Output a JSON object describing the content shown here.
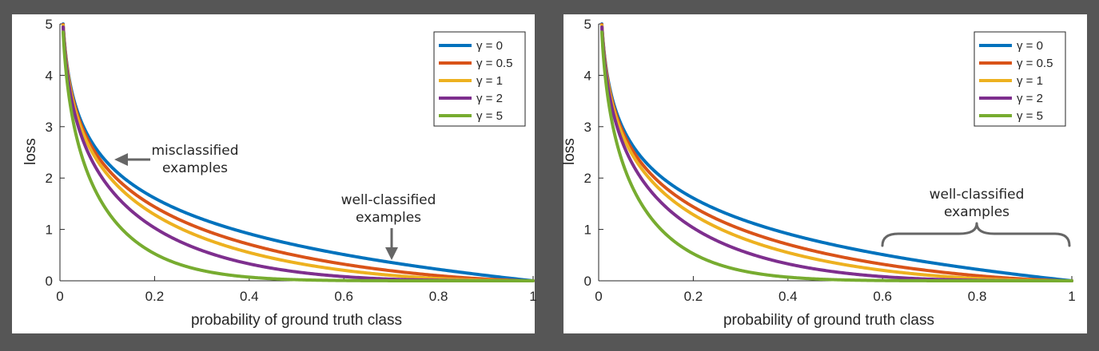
{
  "chart_data": [
    {
      "type": "line",
      "title": "",
      "xlabel": "probability of ground truth class",
      "ylabel": "loss",
      "xlim": [
        0,
        1
      ],
      "ylim": [
        0,
        5
      ],
      "x_ticks": [
        "0",
        "0.2",
        "0.4",
        "0.6",
        "0.8",
        "1"
      ],
      "y_ticks": [
        "0",
        "1",
        "2",
        "3",
        "4",
        "5"
      ],
      "x": [
        0.0067,
        0.01,
        0.02,
        0.05,
        0.1,
        0.2,
        0.3,
        0.4,
        0.5,
        0.6,
        0.7,
        0.8,
        0.9,
        1.0
      ],
      "series": [
        {
          "name": "γ = 0",
          "gamma": 0,
          "color": "#0072BD",
          "values": [
            5.0,
            4.61,
            3.91,
            3.0,
            2.3,
            1.61,
            1.2,
            0.92,
            0.69,
            0.51,
            0.36,
            0.22,
            0.11,
            0.0
          ]
        },
        {
          "name": "γ = 0.5",
          "gamma": 0.5,
          "color": "#D95319",
          "values": [
            4.98,
            4.58,
            3.87,
            2.92,
            2.18,
            1.44,
            1.01,
            0.71,
            0.49,
            0.32,
            0.2,
            0.1,
            0.03,
            0.0
          ]
        },
        {
          "name": "γ = 1",
          "gamma": 1,
          "color": "#EDB120",
          "values": [
            4.97,
            4.56,
            3.83,
            2.85,
            2.07,
            1.29,
            0.84,
            0.55,
            0.35,
            0.2,
            0.11,
            0.04,
            0.01,
            0.0
          ]
        },
        {
          "name": "γ = 2",
          "gamma": 2,
          "color": "#7E2F8E",
          "values": [
            4.93,
            4.52,
            3.76,
            2.71,
            1.87,
            1.03,
            0.59,
            0.33,
            0.17,
            0.08,
            0.03,
            0.01,
            0.001,
            0.0
          ]
        },
        {
          "name": "γ = 5",
          "gamma": 5,
          "color": "#77AC30",
          "values": [
            4.83,
            4.38,
            3.54,
            2.32,
            1.36,
            0.53,
            0.2,
            0.07,
            0.02,
            0.005,
            0.001,
            0.0,
            0.0,
            0.0
          ]
        }
      ],
      "legend": {
        "position": "top-right"
      },
      "annotations": [
        {
          "kind": "arrow",
          "lines": [
            "misclassified",
            "examples"
          ],
          "target": [
            0.1,
            2.3
          ]
        },
        {
          "kind": "arrow",
          "lines": [
            "well-classified",
            "examples"
          ],
          "target": [
            0.7,
            0.36
          ]
        }
      ]
    },
    {
      "type": "line",
      "title": "",
      "xlabel": "probability of ground truth class",
      "ylabel": "loss",
      "xlim": [
        0,
        1
      ],
      "ylim": [
        0,
        5
      ],
      "x_ticks": [
        "0",
        "0.2",
        "0.4",
        "0.6",
        "0.8",
        "1"
      ],
      "y_ticks": [
        "0",
        "1",
        "2",
        "3",
        "4",
        "5"
      ],
      "x": [
        0.0067,
        0.01,
        0.02,
        0.05,
        0.1,
        0.2,
        0.3,
        0.4,
        0.5,
        0.6,
        0.7,
        0.8,
        0.9,
        1.0
      ],
      "series": [
        {
          "name": "γ = 0",
          "gamma": 0,
          "color": "#0072BD",
          "values": [
            5.0,
            4.61,
            3.91,
            3.0,
            2.3,
            1.61,
            1.2,
            0.92,
            0.69,
            0.51,
            0.36,
            0.22,
            0.11,
            0.0
          ]
        },
        {
          "name": "γ = 0.5",
          "gamma": 0.5,
          "color": "#D95319",
          "values": [
            4.98,
            4.58,
            3.87,
            2.92,
            2.18,
            1.44,
            1.01,
            0.71,
            0.49,
            0.32,
            0.2,
            0.1,
            0.03,
            0.0
          ]
        },
        {
          "name": "γ = 1",
          "gamma": 1,
          "color": "#EDB120",
          "values": [
            4.97,
            4.56,
            3.83,
            2.85,
            2.07,
            1.29,
            0.84,
            0.55,
            0.35,
            0.2,
            0.11,
            0.04,
            0.01,
            0.0
          ]
        },
        {
          "name": "γ = 2",
          "gamma": 2,
          "color": "#7E2F8E",
          "values": [
            4.93,
            4.52,
            3.76,
            2.71,
            1.87,
            1.03,
            0.59,
            0.33,
            0.17,
            0.08,
            0.03,
            0.01,
            0.001,
            0.0
          ]
        },
        {
          "name": "γ = 5",
          "gamma": 5,
          "color": "#77AC30",
          "values": [
            4.83,
            4.38,
            3.54,
            2.32,
            1.36,
            0.53,
            0.2,
            0.07,
            0.02,
            0.005,
            0.001,
            0.0,
            0.0,
            0.0
          ]
        }
      ],
      "legend": {
        "position": "top-right"
      },
      "annotations": [
        {
          "kind": "brace",
          "lines": [
            "well-classified",
            "examples"
          ],
          "x_range": [
            0.6,
            1.0
          ]
        }
      ]
    }
  ]
}
